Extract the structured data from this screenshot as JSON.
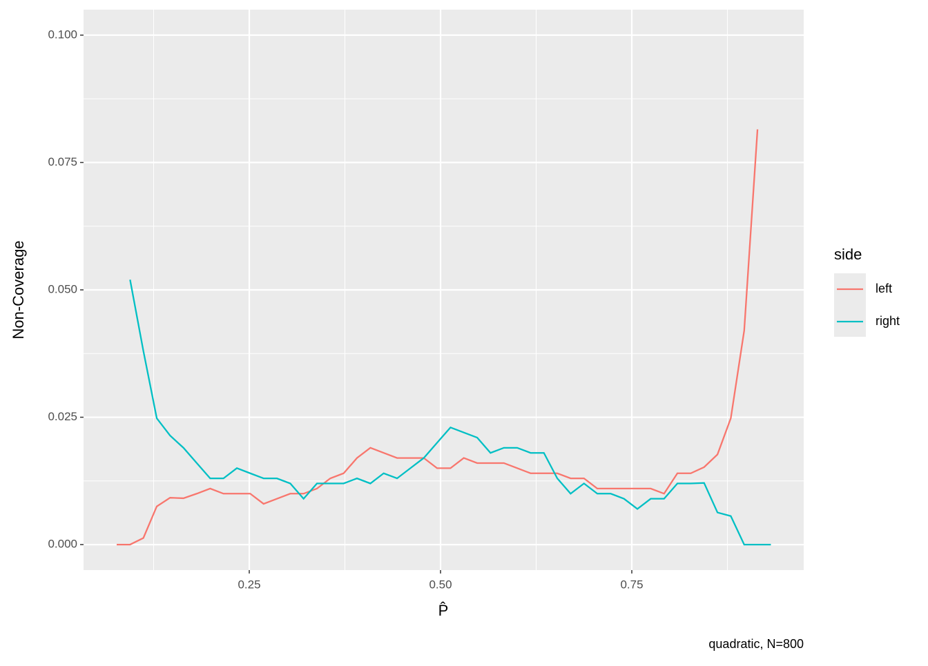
{
  "chart_data": {
    "type": "line",
    "x": [
      0.0767,
      0.0942,
      0.1116,
      0.1291,
      0.1465,
      0.164,
      0.1814,
      0.1989,
      0.2163,
      0.2338,
      0.2512,
      0.2687,
      0.2861,
      0.3036,
      0.321,
      0.3385,
      0.3559,
      0.3734,
      0.3908,
      0.4083,
      0.4257,
      0.4432,
      0.4606,
      0.4781,
      0.4955,
      0.513,
      0.5304,
      0.5479,
      0.5653,
      0.5828,
      0.6002,
      0.6177,
      0.6351,
      0.6526,
      0.67,
      0.6875,
      0.7049,
      0.7224,
      0.7398,
      0.7573,
      0.7747,
      0.7922,
      0.8096,
      0.8271,
      0.8445,
      0.862,
      0.8794,
      0.8969,
      0.9143,
      0.9318
    ],
    "series": [
      {
        "name": "left",
        "color": "#F8766D",
        "values": [
          0,
          0,
          0.0013,
          0.0075,
          0.0092,
          0.0091,
          0.01,
          0.011,
          0.01,
          0.01,
          0.01,
          0.008,
          0.009,
          0.01,
          0.01,
          0.011,
          0.013,
          0.014,
          0.017,
          0.019,
          0.018,
          0.017,
          0.017,
          0.017,
          0.015,
          0.015,
          0.017,
          0.016,
          0.016,
          0.016,
          0.015,
          0.014,
          0.014,
          0.014,
          0.013,
          0.013,
          0.011,
          0.011,
          0.011,
          0.011,
          0.011,
          0.01,
          0.014,
          0.014,
          0.0152,
          0.0177,
          0.0248,
          0.042,
          0.0815,
          null
        ]
      },
      {
        "name": "right",
        "color": "#00BFC4",
        "values": [
          null,
          0.052,
          0.038,
          0.0248,
          0.0214,
          0.019,
          0.016,
          0.013,
          0.013,
          0.015,
          0.014,
          0.013,
          0.013,
          0.012,
          0.009,
          0.012,
          0.012,
          0.012,
          0.013,
          0.012,
          0.014,
          0.013,
          0.015,
          0.017,
          0.02,
          0.023,
          0.022,
          0.021,
          0.018,
          0.019,
          0.019,
          0.018,
          0.018,
          0.013,
          0.01,
          0.012,
          0.01,
          0.01,
          0.009,
          0.007,
          0.009,
          0.009,
          0.012,
          0.012,
          0.0121,
          0.0063,
          0.0056,
          0,
          0,
          0
        ]
      }
    ],
    "xlim": [
      0.0334,
      0.9747
    ],
    "ylim": [
      -0.005,
      0.105
    ],
    "xticks": [
      0.25,
      {
        "value": 0.5,
        "label": "0.50"
      },
      0.75
    ],
    "yticks": [
      {
        "value": 0,
        "label": "0.000"
      },
      {
        "value": 0.025,
        "label": "0.025"
      },
      {
        "value": 0.05,
        "label": "0.050"
      },
      {
        "value": 0.075,
        "label": "0.075"
      },
      {
        "value": 0.1,
        "label": "0.100"
      }
    ],
    "xlabel": "P̂",
    "ylabel": "Non-Coverage",
    "legend_title": "side",
    "caption": "quadratic, N=800",
    "grid": true
  }
}
